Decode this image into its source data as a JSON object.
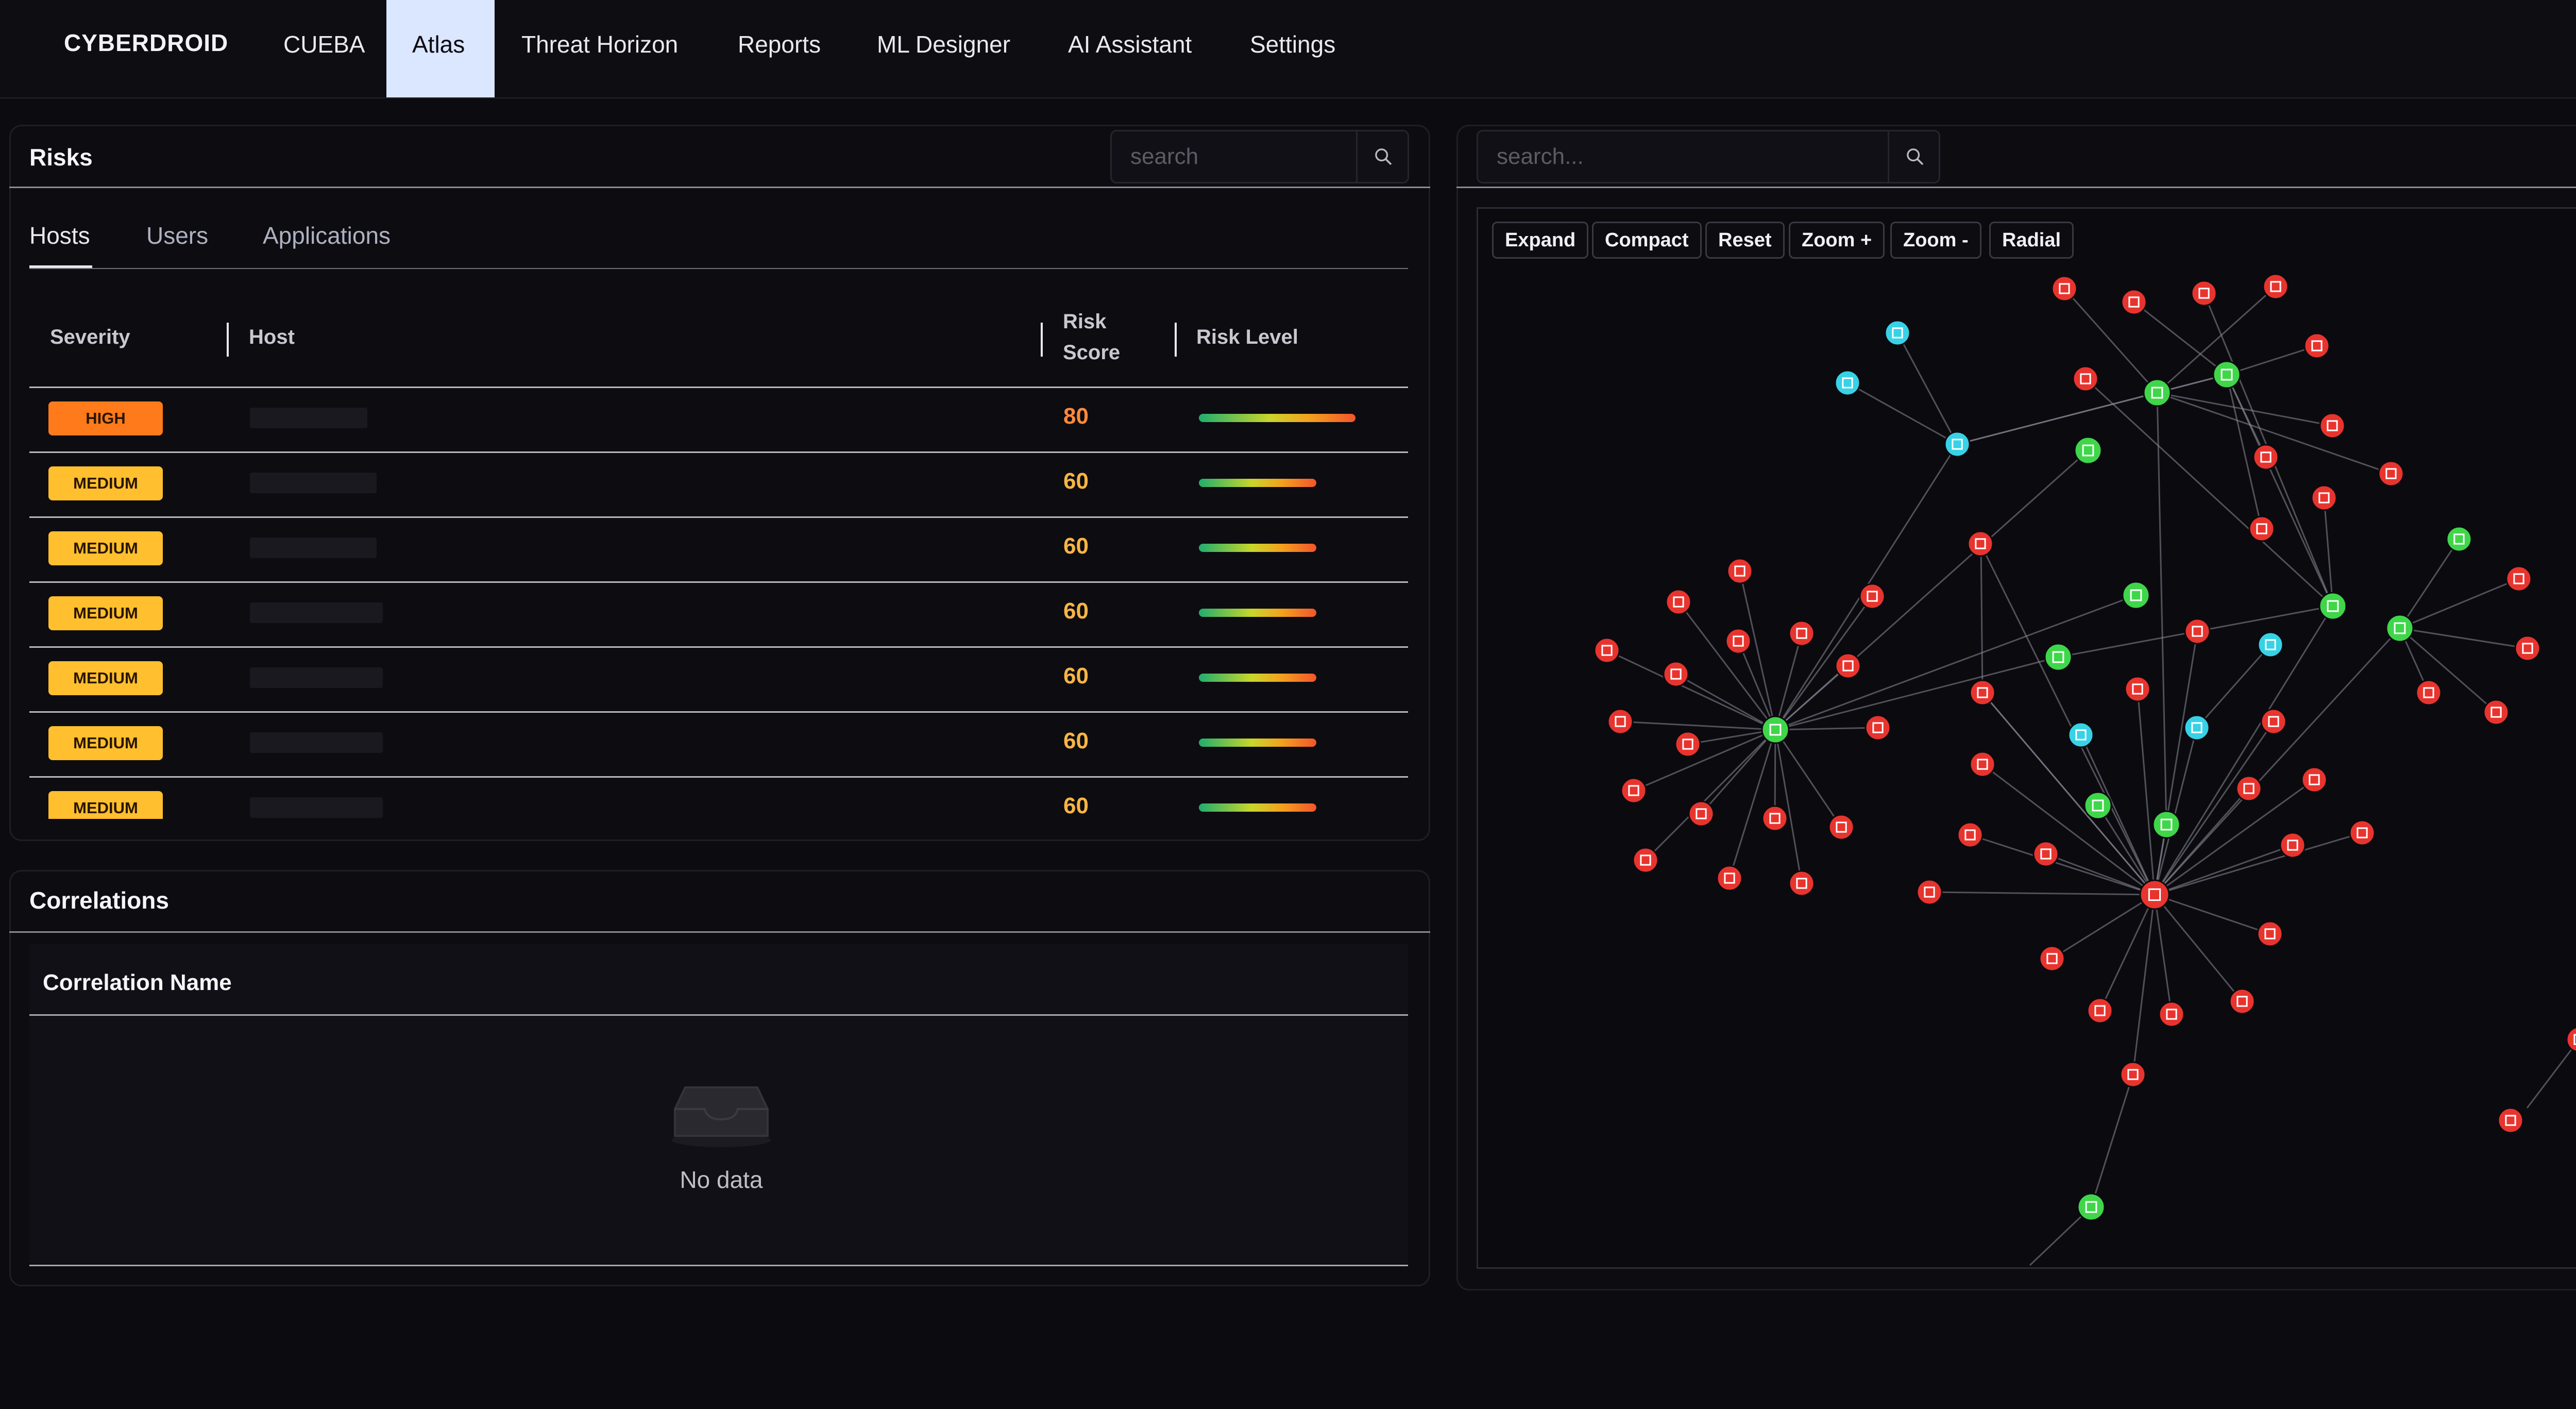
{
  "nav": {
    "brand": "CYBERDROID",
    "items": [
      {
        "label": "CUEBA"
      },
      {
        "label": "Atlas"
      },
      {
        "label": "Threat Horizon"
      },
      {
        "label": "Reports"
      },
      {
        "label": "ML Designer"
      },
      {
        "label": "AI Assistant"
      },
      {
        "label": "Settings"
      }
    ],
    "active": "Atlas"
  },
  "risks": {
    "title": "Risks",
    "search_placeholder": "search",
    "tabs": [
      {
        "label": "Hosts"
      },
      {
        "label": "Users"
      },
      {
        "label": "Applications"
      }
    ],
    "active_tab": "Hosts",
    "columns": {
      "severity": "Severity",
      "host": "Host",
      "risk_score_line1": "Risk",
      "risk_score_line2": "Score",
      "risk_level": "Risk Level"
    },
    "rows": [
      {
        "severity": "HIGH",
        "score": "80",
        "risk_fraction": 0.8
      },
      {
        "severity": "MEDIUM",
        "score": "60",
        "risk_fraction": 0.6
      },
      {
        "severity": "MEDIUM",
        "score": "60",
        "risk_fraction": 0.6
      },
      {
        "severity": "MEDIUM",
        "score": "60",
        "risk_fraction": 0.6
      },
      {
        "severity": "MEDIUM",
        "score": "60",
        "risk_fraction": 0.6
      },
      {
        "severity": "MEDIUM",
        "score": "60",
        "risk_fraction": 0.6
      },
      {
        "severity": "MEDIUM",
        "score": "60",
        "risk_fraction": 0.6
      }
    ],
    "colors": {
      "high": "#ff7a1a",
      "medium": "#ffbf2e",
      "score_high": "#ff8a3d",
      "score_medium": "#f7b545"
    }
  },
  "correlations": {
    "title": "Correlations",
    "column": "Correlation Name",
    "empty_text": "No data",
    "empty_icon": "inbox-icon"
  },
  "graph": {
    "search_placeholder": "search...",
    "toolbar": [
      "Expand",
      "Compact",
      "Reset",
      "Zoom +",
      "Zoom -",
      "Radial"
    ],
    "node_colors": {
      "risk": "#e8342e",
      "host": "#3fd64a",
      "asset": "#37d2e6"
    }
  }
}
